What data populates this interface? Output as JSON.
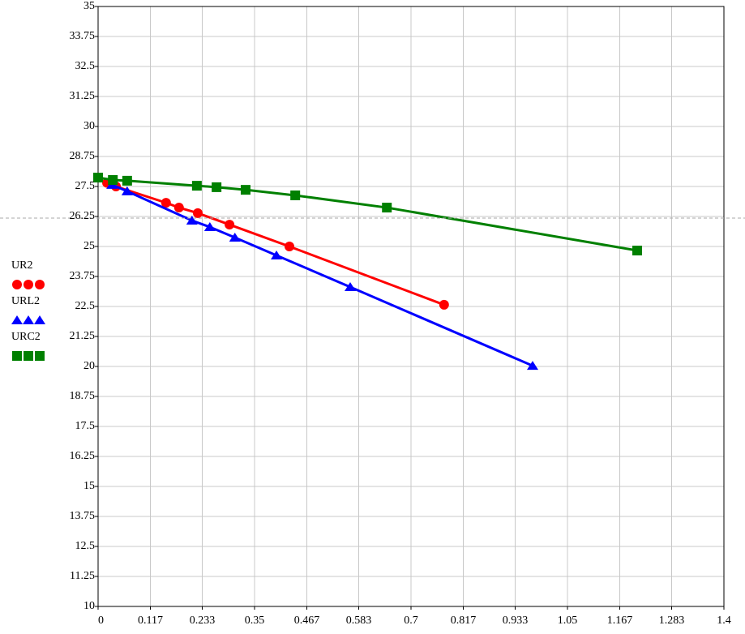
{
  "chart_data": {
    "type": "line",
    "xlim": [
      0,
      1.4
    ],
    "ylim": [
      10,
      35
    ],
    "xticks": [
      0,
      0.117,
      0.233,
      0.35,
      0.467,
      0.583,
      0.7,
      0.817,
      0.933,
      1.05,
      1.167,
      1.283,
      1.4
    ],
    "yticks": [
      10,
      11.25,
      12.5,
      13.75,
      15,
      16.25,
      17.5,
      18.75,
      20,
      21.25,
      22.5,
      23.75,
      25,
      26.25,
      27.5,
      28.75,
      30,
      31.25,
      32.5,
      33.75,
      35
    ],
    "grid": true,
    "legend": "left",
    "series": [
      {
        "name": "UR2",
        "color": "#ff0000",
        "marker": "circle",
        "x": [
          0.02,
          0.04,
          0.152,
          0.181,
          0.223,
          0.294,
          0.428,
          0.774
        ],
        "values": [
          27.65,
          27.5,
          26.82,
          26.62,
          26.39,
          25.91,
          25.0,
          22.57
        ]
      },
      {
        "name": "URL2",
        "color": "#0000ff",
        "marker": "triangle",
        "x": [
          0.031,
          0.065,
          0.21,
          0.25,
          0.306,
          0.399,
          0.564,
          0.972
        ],
        "values": [
          27.57,
          27.3,
          26.08,
          25.81,
          25.37,
          24.63,
          23.31,
          20.03
        ]
      },
      {
        "name": "URC2",
        "color": "#008000",
        "marker": "square",
        "x": [
          0,
          0.033,
          0.065,
          0.221,
          0.265,
          0.33,
          0.441,
          0.646,
          1.206
        ],
        "values": [
          27.87,
          27.77,
          27.74,
          27.53,
          27.47,
          27.36,
          27.13,
          26.62,
          24.83
        ]
      }
    ]
  }
}
